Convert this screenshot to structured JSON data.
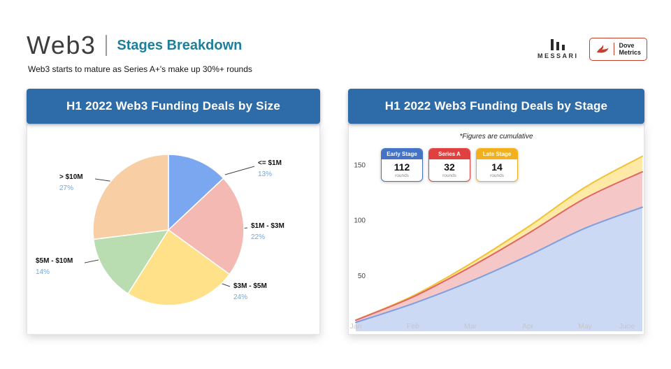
{
  "header": {
    "title": "Web3",
    "subtitle": "Stages Breakdown",
    "tagline": "Web3 starts to mature as Series A+'s make up 30%+ rounds",
    "messari_label": "MESSARI",
    "dove_line1": "Dove",
    "dove_line2": "Metrics"
  },
  "panels": {
    "left": {
      "title": "H1 2022 Web3 Funding Deals by Size"
    },
    "right": {
      "title": "H1 2022 Web3 Funding Deals by Stage",
      "note": "*Figures are cumulative",
      "legend": [
        {
          "label": "Early Stage",
          "value": "112",
          "unit": "rounds",
          "color": "#4472c4"
        },
        {
          "label": "Series A",
          "value": "32",
          "unit": "rounds",
          "color": "#e04040"
        },
        {
          "label": "Late Stage",
          "value": "14",
          "unit": "rounds",
          "color": "#f2b11c"
        }
      ]
    }
  },
  "chart_data": [
    {
      "type": "pie",
      "title": "H1 2022 Web3 Funding Deals by Size",
      "labels": [
        "<= $1M",
        "$1M - $3M",
        "$3M - $5M",
        "$5M - $10M",
        "> $10M"
      ],
      "values": [
        13,
        22,
        24,
        14,
        27
      ],
      "value_labels": [
        "13%",
        "22%",
        "24%",
        "14%",
        "27%"
      ],
      "colors": [
        "#7aa7f0",
        "#f5b9b3",
        "#ffe18a",
        "#b9dcb0",
        "#f8cfa5"
      ],
      "start_angle_deg": -90,
      "direction": "clockwise"
    },
    {
      "type": "area",
      "stacked": true,
      "title": "H1 2022 Web3 Funding Deals by Stage",
      "note": "*Figures are cumulative",
      "x": [
        "Jan",
        "Feb",
        "Mar",
        "Apr",
        "May",
        "June"
      ],
      "series": [
        {
          "name": "Early Stage",
          "values": [
            8,
            25,
            45,
            68,
            93,
            112
          ],
          "fill": "#ccd9f5",
          "line": "#7b9fe0"
        },
        {
          "name": "Series A",
          "values": [
            2,
            6,
            13,
            20,
            27,
            32
          ],
          "fill": "#f6c7c7",
          "line": "#e06666"
        },
        {
          "name": "Late Stage",
          "values": [
            0,
            1,
            3,
            6,
            10,
            14
          ],
          "fill": "#ffe9a6",
          "line": "#f1c232"
        }
      ],
      "yticks": [
        50,
        100,
        150
      ],
      "ylim": [
        0,
        160
      ],
      "legend_position": "top"
    }
  ]
}
